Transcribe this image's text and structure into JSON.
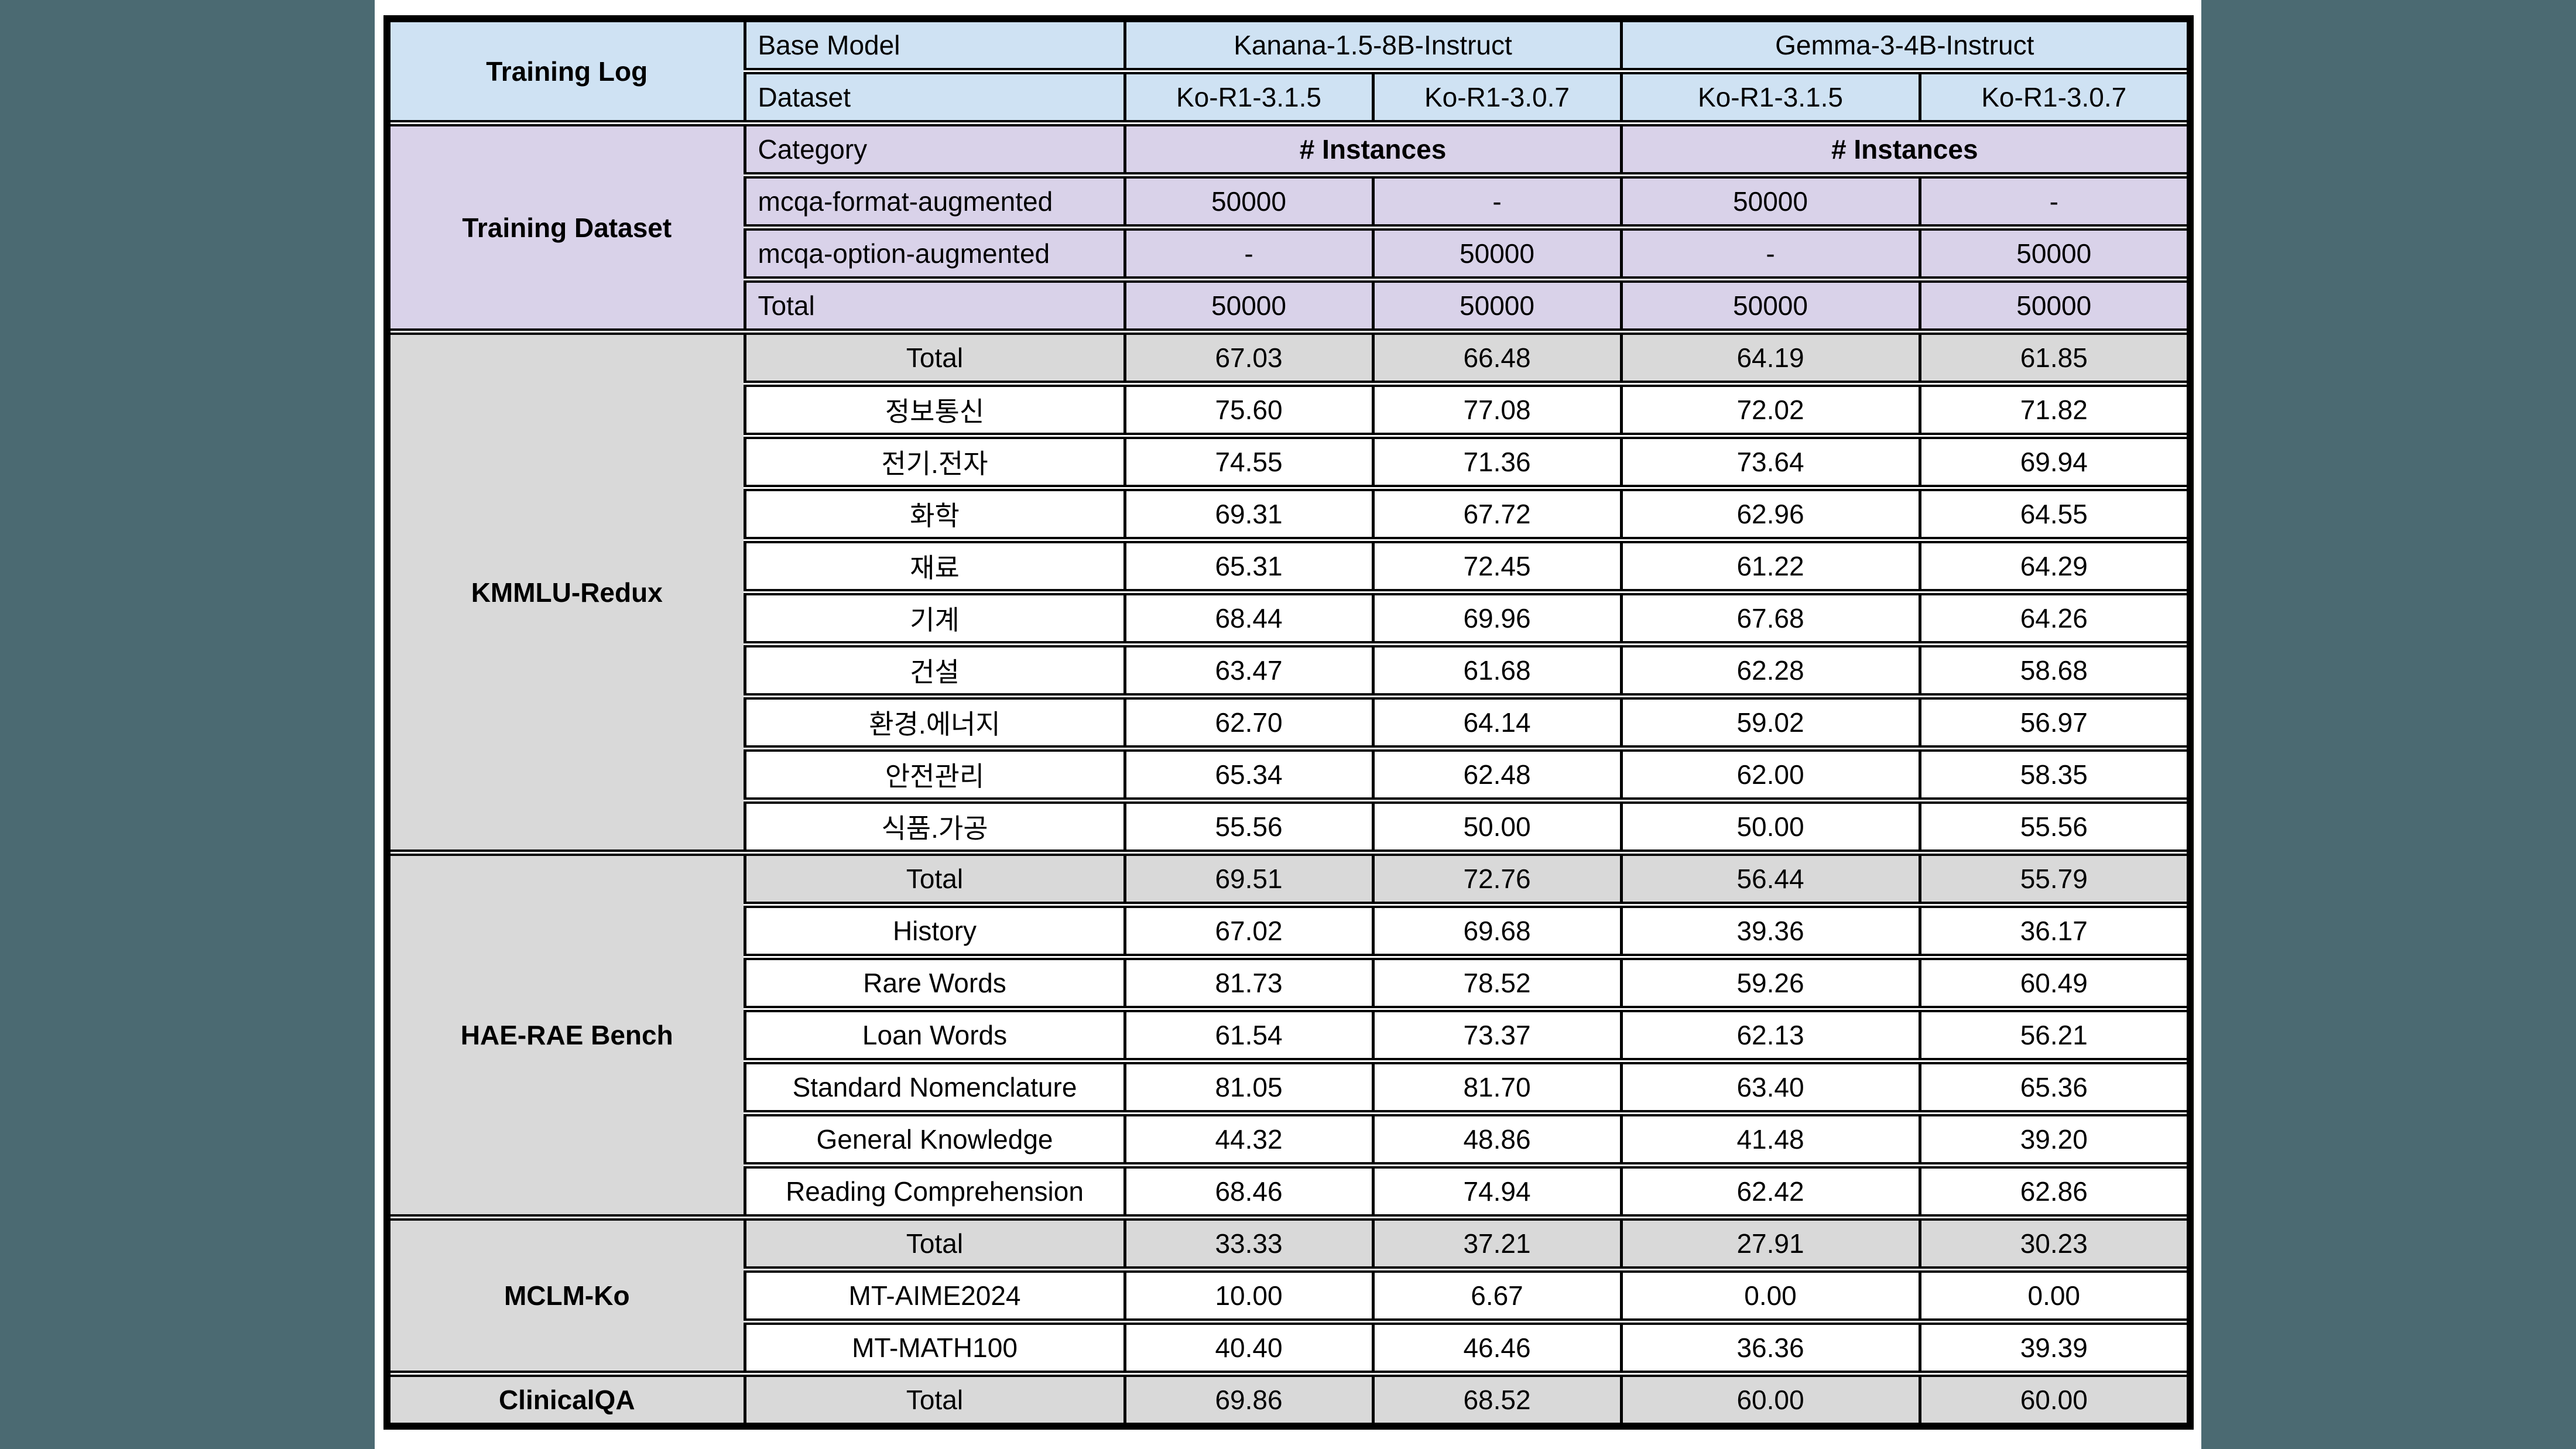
{
  "colors": {
    "page_background_teal": "#4b6a72",
    "panel_white": "#ffffff",
    "header_blue": "#cfe2f3",
    "training_purple": "#d9d2e9",
    "total_gray": "#d9d9d9",
    "border_black": "#000000"
  },
  "header": {
    "training_log_label": "Training Log",
    "base_model_label": "Base Model",
    "dataset_label": "Dataset",
    "models": [
      {
        "name": "Kanana-1.5-8B-Instruct",
        "datasets": [
          "Ko-R1-3.1.5",
          "Ko-R1-3.0.7"
        ]
      },
      {
        "name": "Gemma-3-4B-Instruct",
        "datasets": [
          "Ko-R1-3.1.5",
          "Ko-R1-3.0.7"
        ]
      }
    ]
  },
  "training": {
    "section_label": "Training Dataset",
    "category_label": "Category",
    "instances_label": "# Instances",
    "rows": [
      {
        "label": "mcqa-format-augmented",
        "values": [
          "50000",
          "-",
          "50000",
          "-"
        ]
      },
      {
        "label": "mcqa-option-augmented",
        "values": [
          "-",
          "50000",
          "-",
          "50000"
        ]
      },
      {
        "label": "Total",
        "values": [
          "50000",
          "50000",
          "50000",
          "50000"
        ]
      }
    ]
  },
  "benchmarks": [
    {
      "section_label": "KMMLU-Redux",
      "rows": [
        {
          "label": "Total",
          "total": true,
          "values": [
            "67.03",
            "66.48",
            "64.19",
            "61.85"
          ]
        },
        {
          "label": "정보통신",
          "total": false,
          "values": [
            "75.60",
            "77.08",
            "72.02",
            "71.82"
          ]
        },
        {
          "label": "전기.전자",
          "total": false,
          "values": [
            "74.55",
            "71.36",
            "73.64",
            "69.94"
          ]
        },
        {
          "label": "화학",
          "total": false,
          "values": [
            "69.31",
            "67.72",
            "62.96",
            "64.55"
          ]
        },
        {
          "label": "재료",
          "total": false,
          "values": [
            "65.31",
            "72.45",
            "61.22",
            "64.29"
          ]
        },
        {
          "label": "기계",
          "total": false,
          "values": [
            "68.44",
            "69.96",
            "67.68",
            "64.26"
          ]
        },
        {
          "label": "건설",
          "total": false,
          "values": [
            "63.47",
            "61.68",
            "62.28",
            "58.68"
          ]
        },
        {
          "label": "환경.에너지",
          "total": false,
          "values": [
            "62.70",
            "64.14",
            "59.02",
            "56.97"
          ]
        },
        {
          "label": "안전관리",
          "total": false,
          "values": [
            "65.34",
            "62.48",
            "62.00",
            "58.35"
          ]
        },
        {
          "label": "식품.가공",
          "total": false,
          "values": [
            "55.56",
            "50.00",
            "50.00",
            "55.56"
          ]
        }
      ]
    },
    {
      "section_label": "HAE-RAE Bench",
      "rows": [
        {
          "label": "Total",
          "total": true,
          "values": [
            "69.51",
            "72.76",
            "56.44",
            "55.79"
          ]
        },
        {
          "label": "History",
          "total": false,
          "values": [
            "67.02",
            "69.68",
            "39.36",
            "36.17"
          ]
        },
        {
          "label": "Rare Words",
          "total": false,
          "values": [
            "81.73",
            "78.52",
            "59.26",
            "60.49"
          ]
        },
        {
          "label": "Loan Words",
          "total": false,
          "values": [
            "61.54",
            "73.37",
            "62.13",
            "56.21"
          ]
        },
        {
          "label": "Standard Nomenclature",
          "total": false,
          "values": [
            "81.05",
            "81.70",
            "63.40",
            "65.36"
          ]
        },
        {
          "label": "General Knowledge",
          "total": false,
          "values": [
            "44.32",
            "48.86",
            "41.48",
            "39.20"
          ]
        },
        {
          "label": "Reading Comprehension",
          "total": false,
          "values": [
            "68.46",
            "74.94",
            "62.42",
            "62.86"
          ]
        }
      ]
    },
    {
      "section_label": "MCLM-Ko",
      "rows": [
        {
          "label": "Total",
          "total": true,
          "values": [
            "33.33",
            "37.21",
            "27.91",
            "30.23"
          ]
        },
        {
          "label": "MT-AIME2024",
          "total": false,
          "values": [
            "10.00",
            "6.67",
            "0.00",
            "0.00"
          ]
        },
        {
          "label": "MT-MATH100",
          "total": false,
          "values": [
            "40.40",
            "46.46",
            "36.36",
            "39.39"
          ]
        }
      ]
    },
    {
      "section_label": "ClinicalQA",
      "rows": [
        {
          "label": "Total",
          "total": true,
          "values": [
            "69.86",
            "68.52",
            "60.00",
            "60.00"
          ]
        }
      ]
    }
  ]
}
